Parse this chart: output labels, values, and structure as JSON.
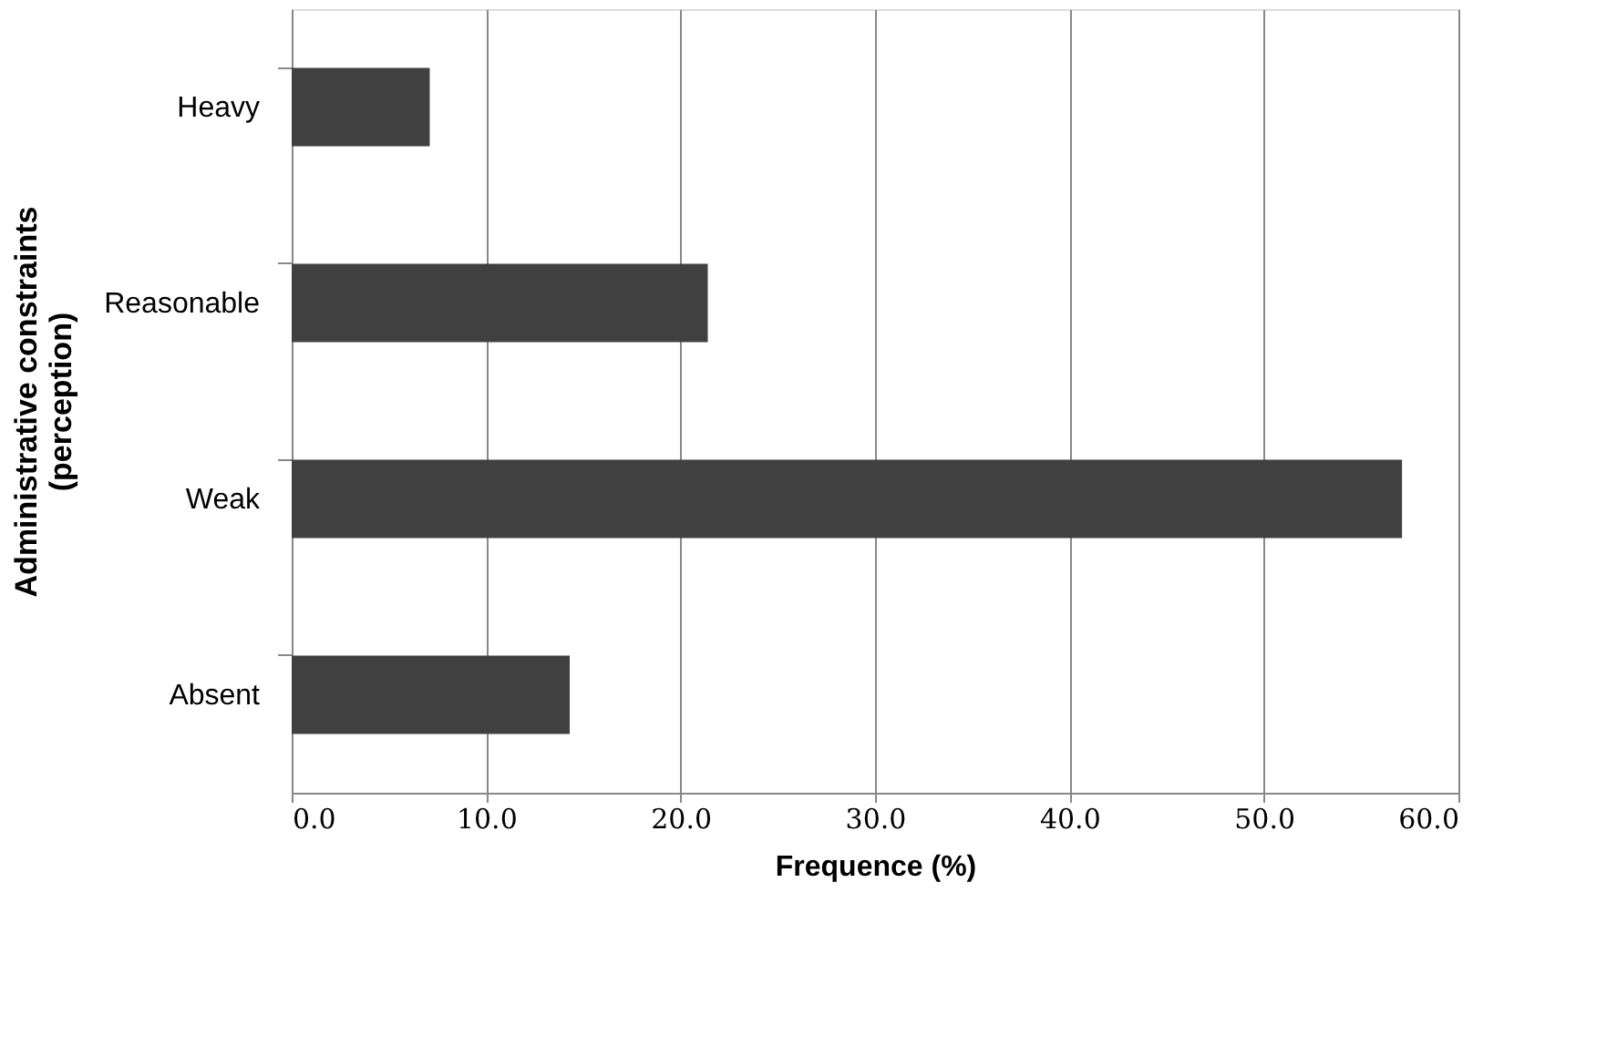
{
  "chart_data": {
    "type": "bar",
    "orientation": "horizontal",
    "xlabel": "Frequence (%)",
    "ylabel": "Administrative constraints\n(perception)",
    "categories": [
      "Heavy",
      "Reasonable",
      "Weak",
      "Absent"
    ],
    "values": [
      7.1,
      21.4,
      57.1,
      14.3
    ],
    "color": "#404040",
    "xlim": [
      0,
      60
    ],
    "xticks": [
      {
        "value": 0,
        "label": "0.0"
      },
      {
        "value": 10,
        "label": "10.0"
      },
      {
        "value": 20,
        "label": "20.0"
      },
      {
        "value": 30,
        "label": "30.0"
      },
      {
        "value": 40,
        "label": "40.0"
      },
      {
        "value": 50,
        "label": "50.0"
      },
      {
        "value": 60,
        "label": "60.0"
      }
    ],
    "grid": "x"
  }
}
